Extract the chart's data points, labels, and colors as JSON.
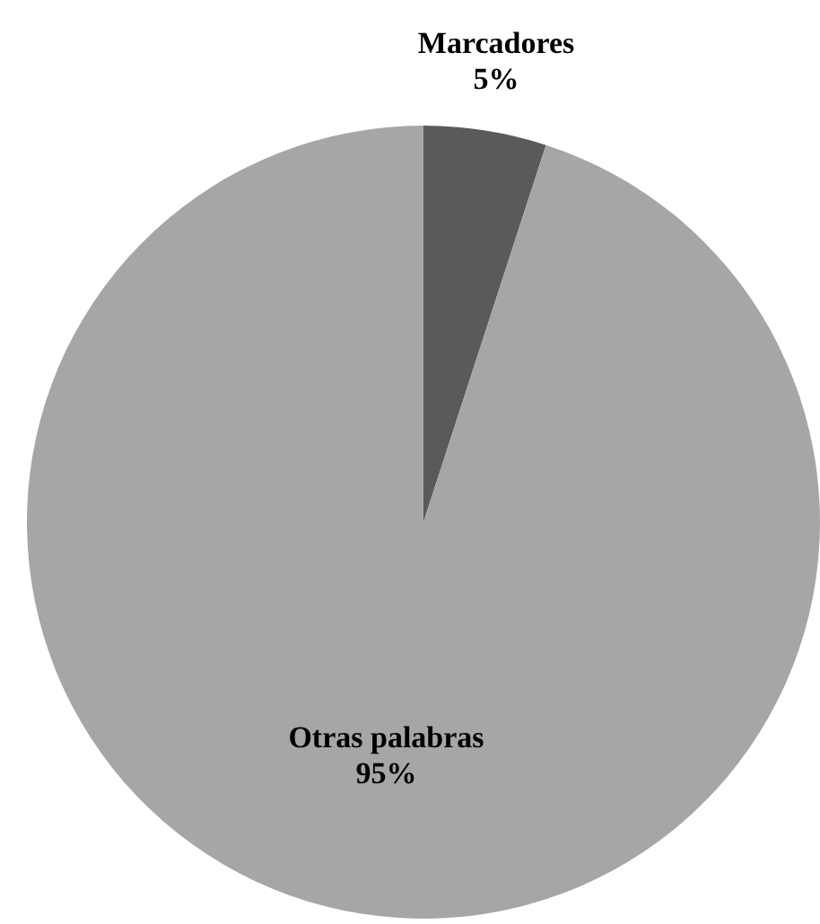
{
  "chart_data": {
    "type": "pie",
    "categories": [
      "Marcadores",
      "Otras palabras"
    ],
    "values": [
      5,
      95
    ],
    "colors": [
      "#5a5a5a",
      "#a6a6a6"
    ],
    "value_labels": [
      "5%",
      "95%"
    ],
    "legend": false
  }
}
